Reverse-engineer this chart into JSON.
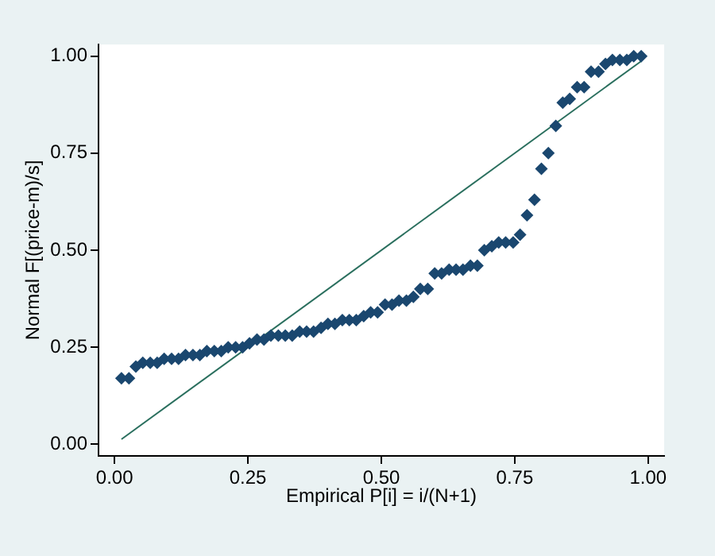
{
  "chart_data": {
    "type": "scatter",
    "xlabel": "Empirical P[i] = i/(N+1)",
    "ylabel": "Normal F[(price-m)/s]",
    "xlim": [
      -0.03,
      1.03
    ],
    "ylim": [
      -0.03,
      1.03
    ],
    "xticks": [
      {
        "value": 0,
        "label": "0.00"
      },
      {
        "value": 0.25,
        "label": "0.25"
      },
      {
        "value": 0.5,
        "label": "0.50"
      },
      {
        "value": 0.75,
        "label": "0.75"
      },
      {
        "value": 1,
        "label": "1.00"
      }
    ],
    "yticks": [
      {
        "value": 0,
        "label": "0.00"
      },
      {
        "value": 0.25,
        "label": "0.25"
      },
      {
        "value": 0.5,
        "label": "0.50"
      },
      {
        "value": 0.75,
        "label": "0.75"
      },
      {
        "value": 1,
        "label": "1.00"
      }
    ],
    "grid": false,
    "legend": false,
    "series": [
      {
        "marker": "diamond",
        "color": "#1a476f",
        "x": [
          0.013,
          0.027,
          0.04,
          0.053,
          0.067,
          0.08,
          0.093,
          0.107,
          0.12,
          0.133,
          0.147,
          0.16,
          0.173,
          0.187,
          0.2,
          0.213,
          0.227,
          0.24,
          0.253,
          0.267,
          0.28,
          0.293,
          0.307,
          0.32,
          0.333,
          0.347,
          0.36,
          0.373,
          0.387,
          0.4,
          0.413,
          0.427,
          0.44,
          0.453,
          0.467,
          0.48,
          0.493,
          0.507,
          0.52,
          0.533,
          0.547,
          0.56,
          0.573,
          0.587,
          0.6,
          0.613,
          0.627,
          0.64,
          0.653,
          0.667,
          0.68,
          0.693,
          0.707,
          0.72,
          0.733,
          0.747,
          0.76,
          0.773,
          0.787,
          0.8,
          0.813,
          0.827,
          0.84,
          0.853,
          0.867,
          0.88,
          0.893,
          0.907,
          0.92,
          0.933,
          0.947,
          0.96,
          0.973,
          0.987
        ],
        "values": [
          0.17,
          0.17,
          0.2,
          0.21,
          0.21,
          0.21,
          0.22,
          0.22,
          0.22,
          0.23,
          0.23,
          0.23,
          0.24,
          0.24,
          0.24,
          0.25,
          0.25,
          0.25,
          0.26,
          0.27,
          0.27,
          0.28,
          0.28,
          0.28,
          0.28,
          0.29,
          0.29,
          0.29,
          0.3,
          0.31,
          0.31,
          0.32,
          0.32,
          0.32,
          0.33,
          0.34,
          0.34,
          0.36,
          0.36,
          0.37,
          0.37,
          0.38,
          0.4,
          0.4,
          0.44,
          0.44,
          0.45,
          0.45,
          0.45,
          0.46,
          0.46,
          0.5,
          0.51,
          0.52,
          0.52,
          0.52,
          0.54,
          0.59,
          0.63,
          0.71,
          0.75,
          0.82,
          0.88,
          0.89,
          0.92,
          0.92,
          0.96,
          0.96,
          0.98,
          0.99,
          0.99,
          0.99,
          1.0,
          1.0
        ]
      },
      {
        "type": "line",
        "marker": "none",
        "color": "#2a6f5e",
        "x": [
          0.013,
          0.987
        ],
        "values": [
          0.013,
          0.987
        ]
      }
    ]
  }
}
